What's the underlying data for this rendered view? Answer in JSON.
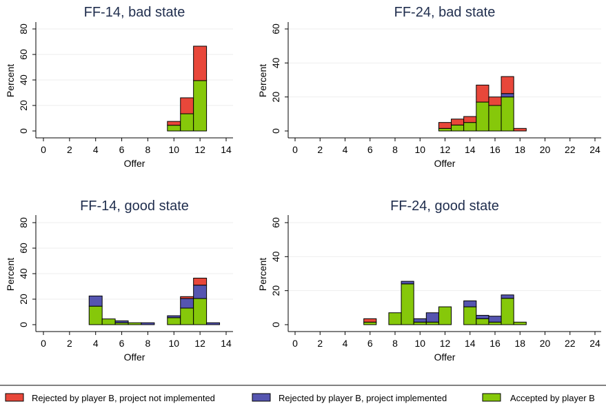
{
  "legend": [
    {
      "name": "Rejected by player B, project not implemented",
      "color": "#e8473a"
    },
    {
      "name": "Rejected by player B, project implemented",
      "color": "#5555b0"
    },
    {
      "name": "Accepted by player B",
      "color": "#86c80a"
    }
  ],
  "chart_data": [
    {
      "type": "bar",
      "stacked": true,
      "title": "FF-14, bad state",
      "xlabel": "Offer",
      "ylabel": "Percent",
      "xlim": [
        0,
        14
      ],
      "ylim": [
        0,
        80
      ],
      "xticks": [
        0,
        2,
        4,
        6,
        8,
        10,
        12,
        14
      ],
      "yticks": [
        0,
        20,
        40,
        60,
        80
      ],
      "grid": true,
      "x": [
        10,
        11,
        12
      ],
      "series": [
        {
          "name": "Accepted by player B",
          "values": [
            4.5,
            13.5,
            39.5
          ]
        },
        {
          "name": "Rejected by player B, project implemented",
          "values": [
            0,
            0,
            0
          ]
        },
        {
          "name": "Rejected by player B, project not implemented",
          "values": [
            3,
            12.5,
            27
          ]
        }
      ]
    },
    {
      "type": "bar",
      "stacked": true,
      "title": "FF-24, bad state",
      "xlabel": "Offer",
      "ylabel": "Percent",
      "xlim": [
        0,
        24
      ],
      "ylim": [
        0,
        60
      ],
      "xticks": [
        0,
        2,
        4,
        6,
        8,
        10,
        12,
        14,
        16,
        18,
        20,
        22,
        24
      ],
      "yticks": [
        0,
        20,
        40,
        60
      ],
      "grid": true,
      "x": [
        12,
        13,
        14,
        15,
        16,
        17,
        18
      ],
      "series": [
        {
          "name": "Accepted by player B",
          "values": [
            1.5,
            3.5,
            5,
            17,
            15,
            20,
            0
          ]
        },
        {
          "name": "Rejected by player B, project implemented",
          "values": [
            0,
            0,
            0,
            0,
            0,
            2,
            0
          ]
        },
        {
          "name": "Rejected by player B, project not implemented",
          "values": [
            3.5,
            3.5,
            3.5,
            10,
            5,
            10,
            1.5
          ]
        }
      ]
    },
    {
      "type": "bar",
      "stacked": true,
      "title": "FF-14, good state",
      "xlabel": "Offer",
      "ylabel": "Percent",
      "xlim": [
        0,
        14
      ],
      "ylim": [
        0,
        80
      ],
      "xticks": [
        0,
        2,
        4,
        6,
        8,
        10,
        12,
        14
      ],
      "yticks": [
        0,
        20,
        40,
        60,
        80
      ],
      "grid": true,
      "x": [
        4,
        5,
        6,
        7,
        8,
        10,
        11,
        12,
        13
      ],
      "series": [
        {
          "name": "Accepted by player B",
          "values": [
            14.5,
            4.5,
            1.5,
            1.5,
            0,
            5.5,
            13,
            20.5,
            0
          ]
        },
        {
          "name": "Rejected by player B, project implemented",
          "values": [
            8,
            0,
            1.5,
            0,
            1.5,
            1.5,
            7.5,
            10.5,
            1.5
          ]
        },
        {
          "name": "Rejected by player B, project not implemented",
          "values": [
            0,
            0,
            0,
            0,
            0,
            0,
            1.5,
            5.5,
            0
          ]
        }
      ]
    },
    {
      "type": "bar",
      "stacked": true,
      "title": "FF-24, good state",
      "xlabel": "Offer",
      "ylabel": "Percent",
      "xlim": [
        0,
        24
      ],
      "ylim": [
        0,
        60
      ],
      "xticks": [
        0,
        2,
        4,
        6,
        8,
        10,
        12,
        14,
        16,
        18,
        20,
        22,
        24
      ],
      "yticks": [
        0,
        20,
        40,
        60
      ],
      "grid": true,
      "x": [
        6,
        8,
        9,
        10,
        11,
        12,
        14,
        15,
        16,
        17,
        18
      ],
      "series": [
        {
          "name": "Accepted by player B",
          "values": [
            1.5,
            7,
            24,
            1.5,
            1.5,
            10.5,
            10.5,
            3.5,
            1.5,
            15.5,
            1.5
          ]
        },
        {
          "name": "Rejected by player B, project implemented",
          "values": [
            0,
            0,
            1.5,
            2,
            5.5,
            0,
            3.5,
            2,
            3.5,
            2,
            0
          ]
        },
        {
          "name": "Rejected by player B, project not implemented",
          "values": [
            2,
            0,
            0,
            0,
            0,
            0,
            0,
            0,
            0,
            0,
            0
          ]
        }
      ]
    }
  ]
}
